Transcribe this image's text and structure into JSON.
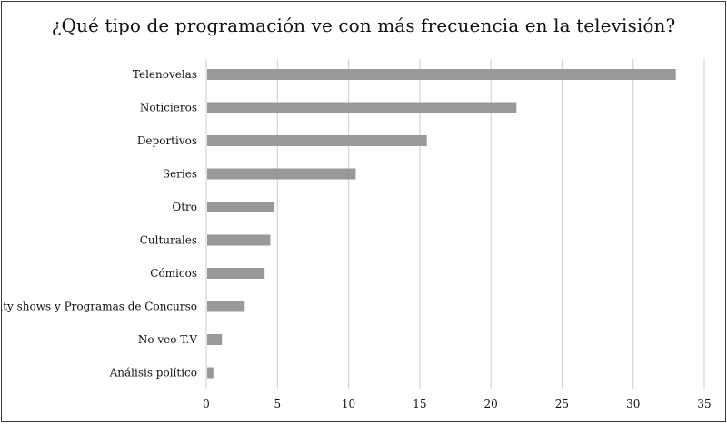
{
  "chart_data": {
    "type": "bar",
    "orientation": "horizontal",
    "title": "¿Qué tipo de programación ve con más frecuencia en la televisión?",
    "categories": [
      "Telenovelas",
      "Noticieros",
      "Deportivos",
      "Series",
      "Otro",
      "Culturales",
      "Cómicos",
      "Reality shows y Programas de Concurso",
      "No veo T.V",
      "Análisis político"
    ],
    "values": [
      33,
      21.8,
      15.5,
      10.5,
      4.8,
      4.5,
      4.1,
      2.7,
      1.1,
      0.5
    ],
    "xlim": [
      0,
      35
    ],
    "xticks": [
      "0",
      "5",
      "10",
      "15",
      "20",
      "25",
      "30",
      "35"
    ],
    "xlabel": "",
    "ylabel": "",
    "grid": "vertical",
    "legend": "none",
    "colors": {
      "bar": "#999999",
      "grid": "#d4d4d4",
      "text": "#111111",
      "border": "#3a3a3a"
    }
  }
}
